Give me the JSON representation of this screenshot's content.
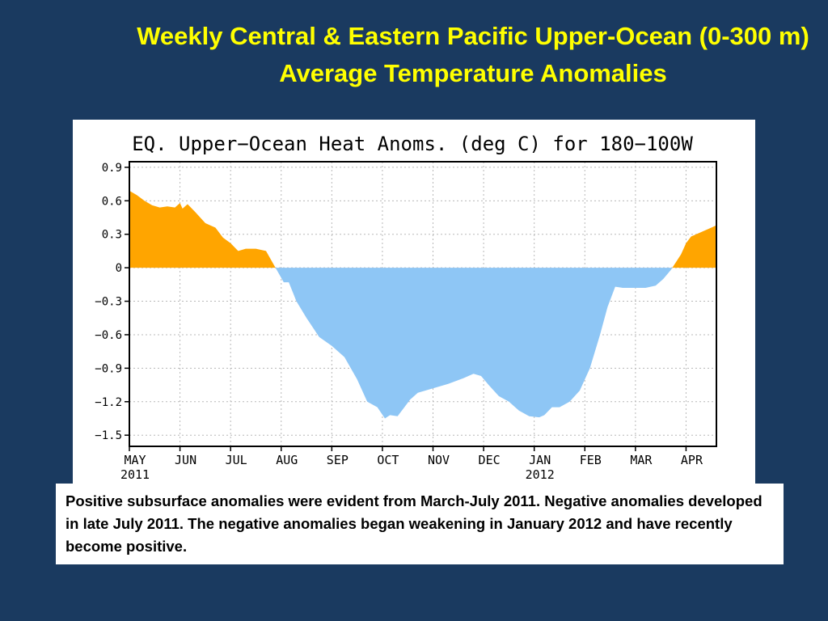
{
  "slide": {
    "title": "Weekly Central & Eastern Pacific Upper-Ocean (0-300 m) Average Temperature Anomalies",
    "caption": "Positive subsurface anomalies were evident from March-July 2011.  Negative anomalies developed in late July 2011. The negative anomalies began weakening in January 2012 and have recently become positive."
  },
  "colors": {
    "positive": "#ffa500",
    "negative": "#8ec6f5",
    "background": "#1a3a60",
    "title": "#ffff00"
  },
  "chart_data": {
    "type": "area",
    "title": "EQ. Upper−Ocean Heat Anoms. (deg C) for 180−100W",
    "xlabel": "",
    "ylabel": "",
    "ylim": [
      -1.6,
      0.95
    ],
    "grid": true,
    "x_ticks": [
      "MAY",
      "JUN",
      "JUL",
      "AUG",
      "SEP",
      "OCT",
      "NOV",
      "DEC",
      "JAN",
      "FEB",
      "MAR",
      "APR"
    ],
    "x_year_labels": [
      {
        "month": "MAY",
        "year": "2011"
      },
      {
        "month": "JAN",
        "year": "2012"
      }
    ],
    "y_ticks": [
      "0.9",
      "0.6",
      "0.3",
      "0",
      "−0.3",
      "−0.6",
      "−0.9",
      "−1.2",
      "−1.5"
    ],
    "y_tick_values": [
      0.9,
      0.6,
      0.3,
      0,
      -0.3,
      -0.6,
      -0.9,
      -1.2,
      -1.5
    ],
    "x_range_months": [
      0,
      11.6
    ],
    "series": [
      {
        "x": [
          0,
          0.15,
          0.3,
          0.45,
          0.6,
          0.75,
          0.9,
          1.0,
          1.05,
          1.15,
          1.3,
          1.5,
          1.7,
          1.85,
          2.0,
          2.15,
          2.3,
          2.5,
          2.7,
          2.85,
          2.95,
          3.05,
          3.15,
          3.3,
          3.5,
          3.75,
          4.0,
          4.25,
          4.5,
          4.7,
          4.9,
          5.05,
          5.15,
          5.3,
          5.4,
          5.55,
          5.7,
          5.85,
          6.0,
          6.3,
          6.6,
          6.8,
          6.95,
          7.1,
          7.3,
          7.5,
          7.7,
          7.9,
          8.1,
          8.2,
          8.35,
          8.5,
          8.7,
          8.9,
          9.1,
          9.3,
          9.45,
          9.6,
          9.75,
          9.9,
          10.0,
          10.2,
          10.4,
          10.55,
          10.7,
          10.8,
          10.9,
          11.0,
          11.1,
          11.3,
          11.5,
          11.6
        ],
        "values": [
          0.69,
          0.65,
          0.6,
          0.56,
          0.54,
          0.55,
          0.54,
          0.58,
          0.53,
          0.57,
          0.5,
          0.4,
          0.36,
          0.27,
          0.22,
          0.15,
          0.17,
          0.17,
          0.15,
          0.03,
          -0.05,
          -0.13,
          -0.13,
          -0.3,
          -0.45,
          -0.62,
          -0.7,
          -0.8,
          -1.0,
          -1.2,
          -1.25,
          -1.35,
          -1.32,
          -1.33,
          -1.27,
          -1.18,
          -1.12,
          -1.1,
          -1.08,
          -1.04,
          -0.99,
          -0.95,
          -0.97,
          -1.05,
          -1.15,
          -1.2,
          -1.28,
          -1.33,
          -1.34,
          -1.32,
          -1.25,
          -1.25,
          -1.2,
          -1.1,
          -0.9,
          -0.6,
          -0.35,
          -0.17,
          -0.18,
          -0.18,
          -0.18,
          -0.18,
          -0.16,
          -0.1,
          -0.02,
          0.05,
          0.12,
          0.22,
          0.28,
          0.32,
          0.36,
          0.38
        ]
      }
    ]
  }
}
